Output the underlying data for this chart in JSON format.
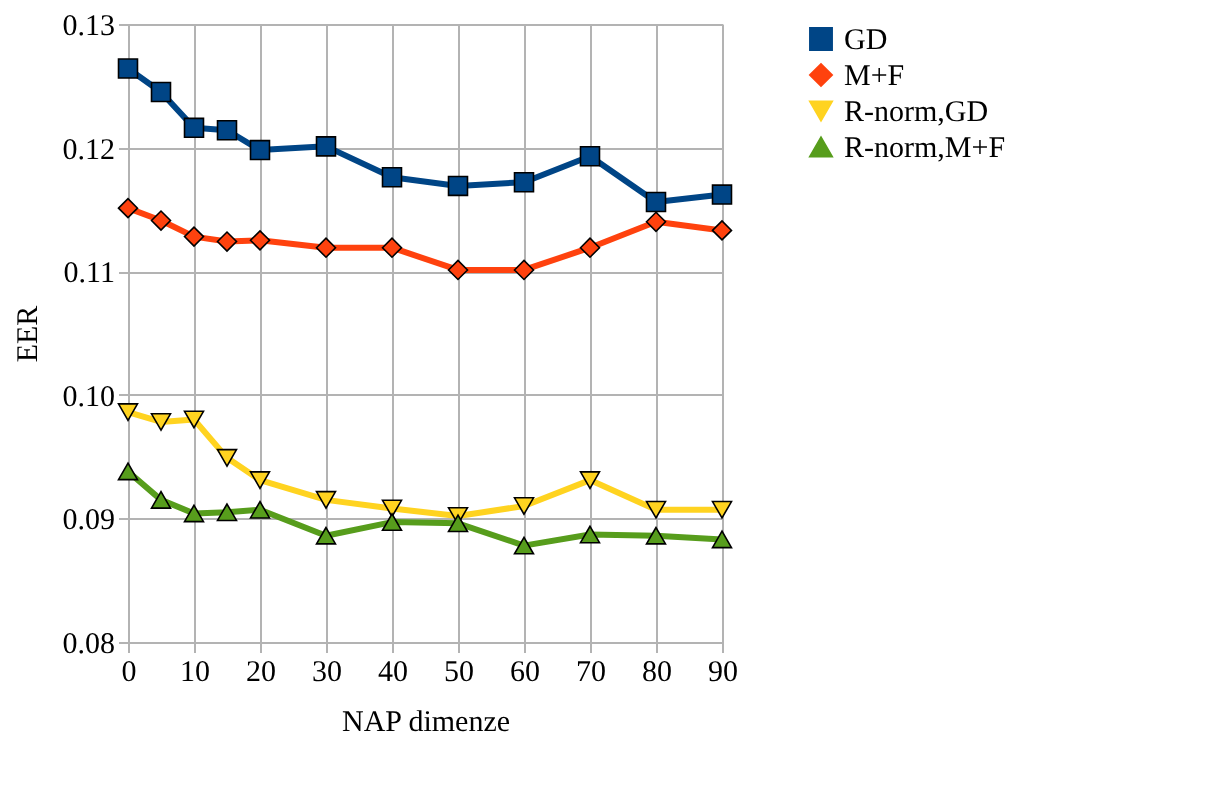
{
  "chart_data": {
    "type": "line",
    "xlabel": "NAP dimenze",
    "ylabel": "EER",
    "x": [
      0,
      5,
      10,
      15,
      20,
      30,
      40,
      50,
      60,
      70,
      80,
      90
    ],
    "xlim": [
      0,
      90
    ],
    "xticks": [
      0,
      10,
      20,
      30,
      40,
      50,
      60,
      70,
      80,
      90
    ],
    "ylim": [
      0.08,
      0.13
    ],
    "yticks": [
      {
        "value": 0.08,
        "label": "0.08"
      },
      {
        "value": 0.09,
        "label": "0.09"
      },
      {
        "value": 0.1,
        "label": "0.10"
      },
      {
        "value": 0.11,
        "label": "0.11"
      },
      {
        "value": 0.12,
        "label": "0.12"
      },
      {
        "value": 0.13,
        "label": "0.13"
      }
    ],
    "grid": true,
    "legend": "right",
    "line_style": "solid",
    "series": [
      {
        "name": "GD",
        "color": "#004586",
        "marker": "square",
        "values": [
          0.1264,
          0.1245,
          0.1216,
          0.1214,
          0.1198,
          0.1201,
          0.1176,
          0.1169,
          0.1172,
          0.1193,
          0.1156,
          0.1162
        ]
      },
      {
        "name": "M+F",
        "color": "#ff420e",
        "marker": "diamond",
        "values": [
          0.1151,
          0.1141,
          0.1128,
          0.1124,
          0.1125,
          0.1119,
          0.1119,
          0.1101,
          0.1101,
          0.1119,
          0.114,
          0.1133
        ]
      },
      {
        "name": "R-norm,GD",
        "color": "#ffd320",
        "marker": "triangle-down",
        "values": [
          0.0986,
          0.0978,
          0.098,
          0.0949,
          0.0931,
          0.0915,
          0.0908,
          0.0902,
          0.091,
          0.0931,
          0.0907,
          0.0907
        ]
      },
      {
        "name": "R-norm,M+F",
        "color": "#579d1c",
        "marker": "triangle",
        "values": [
          0.0938,
          0.0915,
          0.0904,
          0.0905,
          0.0907,
          0.0886,
          0.0897,
          0.0896,
          0.0878,
          0.0887,
          0.0886,
          0.0883
        ]
      }
    ]
  }
}
